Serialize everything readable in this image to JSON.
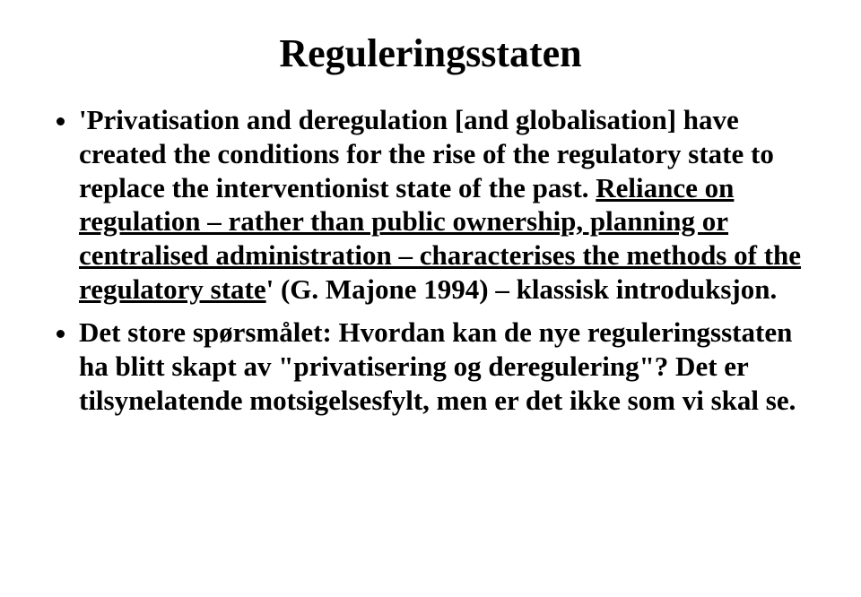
{
  "slide": {
    "title": "Reguleringsstaten",
    "bullet1": {
      "pre": "'Privatisation and deregulation [and globalisation] have created the conditions for the rise of the regulatory state to replace the interventionist state of the past. ",
      "underlined": "Reliance on regulation – rather than public ownership, planning or centralised administration – characterises the methods of the regulatory state",
      "post": "' (G. Majone 1994) – klassisk introduksjon."
    },
    "bullet2": "Det store spørsmålet: Hvordan kan de nye reguleringsstaten ha blitt skapt av \"privatisering og deregulering\"? Det er tilsynelatende motsigelsesfylt, men er det ikke som vi skal se."
  },
  "style": {
    "background_color": "#ffffff",
    "text_color": "#000000",
    "title_fontsize": 44,
    "body_fontsize": 31,
    "font_family": "Times New Roman"
  }
}
